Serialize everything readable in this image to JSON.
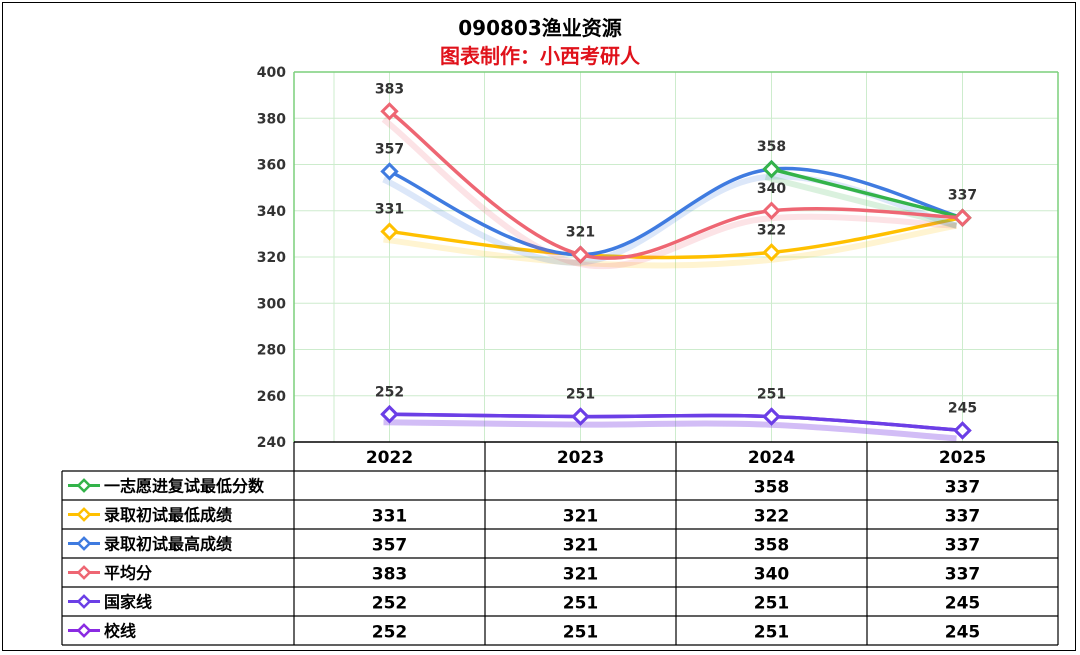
{
  "chart_data": {
    "type": "line",
    "title": "090803渔业资源",
    "subtitle": "图表制作：小西考研人",
    "categories": [
      "2022",
      "2023",
      "2024",
      "2025"
    ],
    "ylim": [
      240,
      400
    ],
    "yticks": [
      "240",
      "260",
      "280",
      "300",
      "320",
      "340",
      "360",
      "380",
      "400"
    ],
    "grid": true,
    "legend": "table-below",
    "series": [
      {
        "name": "一志愿进复试最低分数",
        "color": "#33b34a",
        "values": [
          null,
          null,
          358,
          337
        ],
        "labels": [
          "",
          "",
          "358",
          "337"
        ]
      },
      {
        "name": "录取初试最低成绩",
        "color": "#ffc000",
        "values": [
          331,
          321,
          322,
          337
        ],
        "labels": [
          "331",
          "321",
          "322",
          "337"
        ]
      },
      {
        "name": "录取初试最高成绩",
        "color": "#3f7be0",
        "values": [
          357,
          321,
          358,
          337
        ],
        "labels": [
          "357",
          "321",
          "358",
          "337"
        ]
      },
      {
        "name": "平均分",
        "color": "#ee6673",
        "values": [
          383,
          321,
          340,
          337
        ],
        "labels": [
          "383",
          "321",
          "340",
          "337"
        ]
      },
      {
        "name": "国家线",
        "color": "#6b3fe6",
        "values": [
          252,
          251,
          251,
          245
        ],
        "labels": [
          "252",
          "251",
          "251",
          "245"
        ]
      },
      {
        "name": "校线",
        "color": "#8a2be2",
        "values": [
          252,
          251,
          251,
          245
        ],
        "labels": [
          "252",
          "251",
          "251",
          "245"
        ]
      }
    ],
    "point_labels": [
      {
        "x": "2022",
        "value": "383"
      },
      {
        "x": "2022",
        "value": "357"
      },
      {
        "x": "2022",
        "value": "331"
      },
      {
        "x": "2023",
        "value": "321"
      },
      {
        "x": "2024",
        "value": "358"
      },
      {
        "x": "2024",
        "value": "340"
      },
      {
        "x": "2024",
        "value": "322"
      },
      {
        "x": "2025",
        "value": "337"
      },
      {
        "x": "2022",
        "value": "252"
      },
      {
        "x": "2023",
        "value": "251"
      },
      {
        "x": "2024",
        "value": "251"
      },
      {
        "x": "2025",
        "value": "245"
      }
    ]
  }
}
